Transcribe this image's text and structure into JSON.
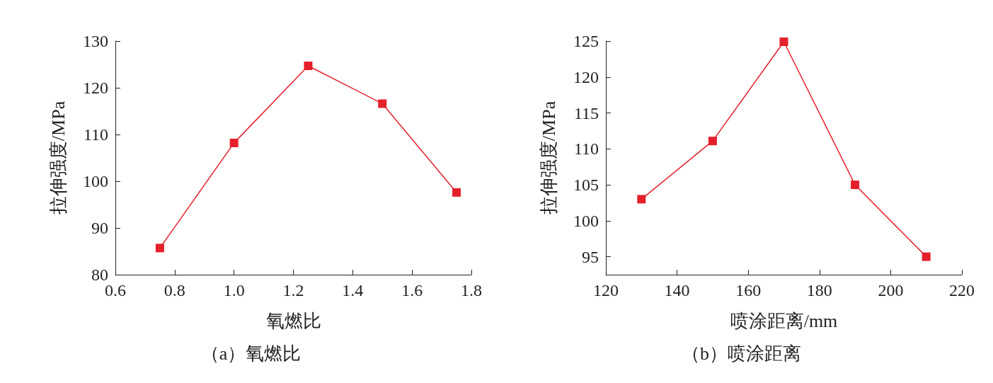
{
  "chart_data": [
    {
      "type": "line",
      "xlabel": "氧燃比",
      "ylabel": "拉伸强度/MPa",
      "annotations": [
        "（a）氧燃比"
      ],
      "x": [
        0.75,
        1.0,
        1.25,
        1.5,
        1.75
      ],
      "series": [
        {
          "color": "#e3202b",
          "values": [
            85.7,
            108.2,
            124.7,
            116.6,
            97.6
          ]
        }
      ],
      "xlim": [
        0.6,
        1.8
      ],
      "xticks": [
        {
          "value": 0.6,
          "label": "0.6"
        },
        {
          "value": 0.8,
          "label": "0.8"
        },
        {
          "value": 1.0,
          "label": "1.0"
        },
        {
          "value": 1.2,
          "label": "1.2"
        },
        {
          "value": 1.4,
          "label": "1.4"
        },
        {
          "value": 1.6,
          "label": "1.6"
        },
        {
          "value": 1.8,
          "label": "1.8"
        }
      ],
      "ylim": [
        80,
        130
      ],
      "yticks": [
        80,
        90,
        100,
        110,
        120,
        130
      ],
      "grid": false,
      "marker": "square",
      "line_style": "solid"
    },
    {
      "type": "line",
      "xlabel": "喷涂距离/mm",
      "ylabel": "拉伸强度/MPa",
      "annotations": [
        "（b）喷涂距离"
      ],
      "x": [
        130,
        150,
        170,
        190,
        210
      ],
      "series": [
        {
          "color": "#e3202b",
          "values": [
            103,
            111.1,
            124.9,
            105,
            95
          ]
        }
      ],
      "xlim": [
        120,
        220
      ],
      "xticks": [
        120,
        140,
        160,
        180,
        200,
        220
      ],
      "ylim": [
        92.5,
        125
      ],
      "yticks": [
        95,
        100,
        105,
        110,
        115,
        120,
        125
      ],
      "grid": false,
      "marker": "square",
      "line_style": "solid"
    }
  ]
}
